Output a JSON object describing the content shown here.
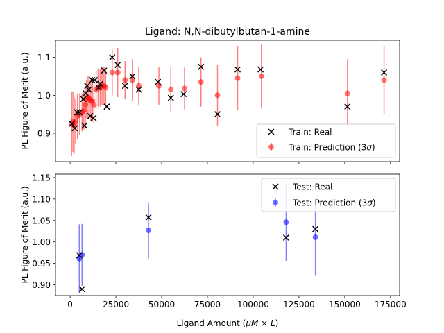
{
  "figure": {
    "title": "Ligand: N,N-dibutylbutan-1-amine",
    "xlabel_main": "Ligand Amount (",
    "xlabel_math": "μM × L",
    "xlabel_end": ")",
    "colors": {
      "pred_train": "#ff0000",
      "pred_test": "#0000ff",
      "real": "#000000"
    }
  },
  "chart_data": [
    {
      "type": "scatter",
      "panel": "top",
      "ylabel": "PL Figure of Merit (a.u.)",
      "xlim": [
        -8000,
        180000
      ],
      "ylim": [
        0.825,
        1.145
      ],
      "xticks": [
        0,
        25000,
        50000,
        75000,
        100000,
        125000,
        150000,
        175000
      ],
      "yticks": [
        0.9,
        1.0,
        1.1
      ],
      "ytick_labels": [
        "0.9",
        "1.0",
        "1.1"
      ],
      "legend": {
        "placement": "lower-right",
        "entries": [
          {
            "label": "Train: Real",
            "marker": "x",
            "color": "#000000"
          },
          {
            "label_main": "Train: Prediction (3",
            "label_sym": "σ",
            "label_end": ")",
            "marker": "o",
            "color": "#ff0000"
          }
        ]
      },
      "series": [
        {
          "name": "Train: Real",
          "marker": "x",
          "points": [
            [
              1000,
              0.925
            ],
            [
              2500,
              0.913
            ],
            [
              3800,
              0.955
            ],
            [
              5000,
              0.955
            ],
            [
              7200,
              0.99
            ],
            [
              7800,
              0.92
            ],
            [
              8500,
              1.005
            ],
            [
              9300,
              1.025
            ],
            [
              10200,
              1.015
            ],
            [
              11000,
              0.945
            ],
            [
              12000,
              1.04
            ],
            [
              12800,
              0.94
            ],
            [
              13500,
              1.04
            ],
            [
              15500,
              1.02
            ],
            [
              16500,
              1.03
            ],
            [
              18500,
              1.065
            ],
            [
              20000,
              0.97
            ],
            [
              23000,
              1.1
            ],
            [
              26000,
              1.08
            ],
            [
              30000,
              1.025
            ],
            [
              34000,
              1.05
            ],
            [
              37500,
              1.015
            ],
            [
              48000,
              1.035
            ],
            [
              55000,
              0.993
            ],
            [
              62000,
              1.003
            ],
            [
              71500,
              1.075
            ],
            [
              80500,
              0.95
            ],
            [
              91500,
              1.068
            ],
            [
              104000,
              1.068
            ],
            [
              151500,
              0.97
            ],
            [
              171500,
              1.06
            ]
          ]
        },
        {
          "name": "Train: Prediction (3σ)",
          "marker": "o",
          "points": [
            [
              800,
              0.925,
              0.085
            ],
            [
              1500,
              0.93,
              0.08
            ],
            [
              2200,
              0.92,
              0.075
            ],
            [
              3000,
              0.93,
              0.06
            ],
            [
              4000,
              0.945,
              0.06
            ],
            [
              5200,
              0.95,
              0.055
            ],
            [
              6500,
              0.955,
              0.05
            ],
            [
              7500,
              0.96,
              0.05
            ],
            [
              8300,
              0.975,
              0.05
            ],
            [
              9000,
              0.99,
              0.05
            ],
            [
              9800,
              0.995,
              0.055
            ],
            [
              10500,
              0.99,
              0.05
            ],
            [
              11300,
              0.985,
              0.05
            ],
            [
              12200,
              0.985,
              0.055
            ],
            [
              13000,
              0.975,
              0.05
            ],
            [
              14200,
              1.015,
              0.05
            ],
            [
              15300,
              1.02,
              0.05
            ],
            [
              16400,
              1.02,
              0.05
            ],
            [
              17400,
              1.025,
              0.05
            ],
            [
              18500,
              1.025,
              0.05
            ],
            [
              19400,
              1.02,
              0.05
            ],
            [
              23000,
              1.06,
              0.06
            ],
            [
              26000,
              1.06,
              0.065
            ],
            [
              30000,
              1.04,
              0.05
            ],
            [
              34000,
              1.04,
              0.055
            ],
            [
              37500,
              1.025,
              0.05
            ],
            [
              48500,
              1.025,
              0.05
            ],
            [
              55000,
              1.015,
              0.06
            ],
            [
              62500,
              1.018,
              0.055
            ],
            [
              71500,
              1.035,
              0.065
            ],
            [
              80500,
              1.0,
              0.08
            ],
            [
              91500,
              1.045,
              0.085
            ],
            [
              104500,
              1.05,
              0.085
            ],
            [
              151500,
              1.005,
              0.09
            ],
            [
              171500,
              1.04,
              0.09
            ]
          ]
        }
      ]
    },
    {
      "type": "scatter",
      "panel": "bottom",
      "ylabel": "PL Figure of Merit (a.u.)",
      "xlim": [
        -8000,
        180000
      ],
      "ylim": [
        0.875,
        1.158
      ],
      "xticks": [
        0,
        25000,
        50000,
        75000,
        100000,
        125000,
        150000,
        175000
      ],
      "xtick_labels": [
        "0",
        "25000",
        "50000",
        "75000",
        "100000",
        "125000",
        "150000",
        "175000"
      ],
      "yticks": [
        0.9,
        0.95,
        1.0,
        1.05,
        1.1,
        1.15
      ],
      "ytick_labels": [
        "0.90",
        "0.95",
        "1.00",
        "1.05",
        "1.10",
        "1.15"
      ],
      "legend": {
        "placement": "upper-right",
        "entries": [
          {
            "label": "Test: Real",
            "marker": "x",
            "color": "#000000"
          },
          {
            "label_main": "Test: Prediction (3",
            "label_sym": "σ",
            "label_end": ")",
            "marker": "o",
            "color": "#0000ff"
          }
        ]
      },
      "series": [
        {
          "name": "Test: Real",
          "marker": "x",
          "points": [
            [
              5000,
              0.969
            ],
            [
              6500,
              0.89
            ],
            [
              42800,
              1.057
            ],
            [
              118000,
              1.01
            ],
            [
              134000,
              1.03
            ]
          ]
        },
        {
          "name": "Test: Prediction (3σ)",
          "marker": "o",
          "points": [
            [
              5000,
              0.961,
              0.08
            ],
            [
              6500,
              0.97,
              0.072
            ],
            [
              42800,
              1.027,
              0.065
            ],
            [
              118000,
              1.046,
              0.09
            ],
            [
              134000,
              1.011,
              0.09
            ]
          ]
        }
      ]
    }
  ]
}
